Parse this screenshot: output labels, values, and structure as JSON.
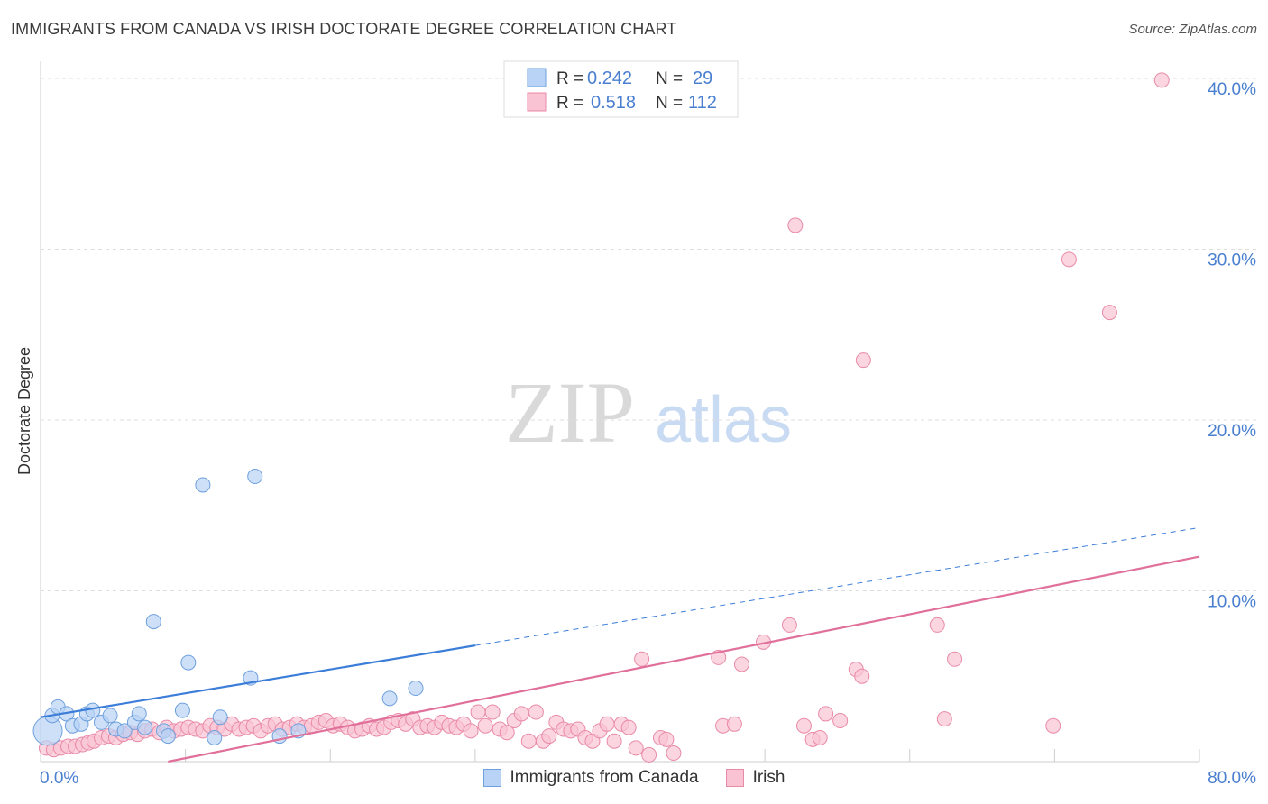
{
  "title": "IMMIGRANTS FROM CANADA VS IRISH DOCTORATE DEGREE CORRELATION CHART",
  "source": "Source: ZipAtlas.com",
  "watermark": {
    "zip": "ZIP",
    "atlas": "atlas"
  },
  "colors": {
    "blue_fill": "#b8d3f5",
    "blue_stroke": "#6fa0dd",
    "blue_line": "#3b7dd8",
    "pink_fill": "#f9c3d3",
    "pink_stroke": "#e98aa8",
    "pink_line": "#e0709a",
    "axis_text": "#4a7fd0",
    "grid": "#dddddd"
  },
  "legend_top": {
    "rows": [
      {
        "r_label": "R = ",
        "r_value": "0.242",
        "n_label": "N = ",
        "n_value": "29"
      },
      {
        "r_label": "R = ",
        "r_value": "0.518",
        "n_label": "N = ",
        "n_value": "112"
      }
    ]
  },
  "legend_bottom": {
    "series1": "Immigrants from Canada",
    "series2": "Irish"
  },
  "chart_data": {
    "type": "scatter",
    "title": "IMMIGRANTS FROM CANADA VS IRISH DOCTORATE DEGREE CORRELATION CHART",
    "xlabel": "",
    "ylabel": "Doctorate Degree",
    "xlim": [
      0,
      80
    ],
    "ylim": [
      0,
      41
    ],
    "x_tick_labels": [
      "0.0%",
      "80.0%"
    ],
    "y_ticks": [
      10,
      20,
      30,
      40
    ],
    "y_tick_labels": [
      "10.0%",
      "20.0%",
      "30.0%",
      "40.0%"
    ],
    "grid": true,
    "series": [
      {
        "name": "Immigrants from Canada",
        "r": 0.242,
        "n": 29,
        "trend": {
          "x0": 0,
          "y0": 2.6,
          "x1": 30,
          "y1": 6.8,
          "dash_x1": 80,
          "dash_y1": 13.7
        },
        "points": [
          [
            0.5,
            1.8
          ],
          [
            0.8,
            2.7
          ],
          [
            1.2,
            3.2
          ],
          [
            1.8,
            2.8
          ],
          [
            2.2,
            2.1
          ],
          [
            2.8,
            2.2
          ],
          [
            3.2,
            2.8
          ],
          [
            3.6,
            3.0
          ],
          [
            4.2,
            2.3
          ],
          [
            4.8,
            2.7
          ],
          [
            5.2,
            1.9
          ],
          [
            5.8,
            1.8
          ],
          [
            6.5,
            2.3
          ],
          [
            6.8,
            2.8
          ],
          [
            7.2,
            2.0
          ],
          [
            7.8,
            8.2
          ],
          [
            8.5,
            1.8
          ],
          [
            8.8,
            1.5
          ],
          [
            9.8,
            3.0
          ],
          [
            10.2,
            5.8
          ],
          [
            11.2,
            16.2
          ],
          [
            12.0,
            1.4
          ],
          [
            12.4,
            2.6
          ],
          [
            14.5,
            4.9
          ],
          [
            14.8,
            16.7
          ],
          [
            16.5,
            1.5
          ],
          [
            17.8,
            1.8
          ],
          [
            24.1,
            3.7
          ],
          [
            25.9,
            4.3
          ]
        ]
      },
      {
        "name": "Irish",
        "r": 0.518,
        "n": 112,
        "trend": {
          "x0": 8.8,
          "y0": 0,
          "x1": 80,
          "y1": 12.0
        },
        "points": [
          [
            0.4,
            0.8
          ],
          [
            0.9,
            0.7
          ],
          [
            1.4,
            0.8
          ],
          [
            1.9,
            0.9
          ],
          [
            2.4,
            0.9
          ],
          [
            2.9,
            1.0
          ],
          [
            3.3,
            1.1
          ],
          [
            3.7,
            1.2
          ],
          [
            4.2,
            1.4
          ],
          [
            4.7,
            1.5
          ],
          [
            5.2,
            1.4
          ],
          [
            5.7,
            1.6
          ],
          [
            6.2,
            1.7
          ],
          [
            6.7,
            1.6
          ],
          [
            7.2,
            1.8
          ],
          [
            7.7,
            1.9
          ],
          [
            8.2,
            1.7
          ],
          [
            8.7,
            2.0
          ],
          [
            9.2,
            1.8
          ],
          [
            9.7,
            1.9
          ],
          [
            10.2,
            2.0
          ],
          [
            10.7,
            1.9
          ],
          [
            11.2,
            1.8
          ],
          [
            11.7,
            2.1
          ],
          [
            12.2,
            2.0
          ],
          [
            12.7,
            1.9
          ],
          [
            13.2,
            2.2
          ],
          [
            13.7,
            1.9
          ],
          [
            14.2,
            2.0
          ],
          [
            14.7,
            2.1
          ],
          [
            15.2,
            1.8
          ],
          [
            15.7,
            2.1
          ],
          [
            16.2,
            2.2
          ],
          [
            16.7,
            1.9
          ],
          [
            17.2,
            2.0
          ],
          [
            17.7,
            2.2
          ],
          [
            18.2,
            2.0
          ],
          [
            18.7,
            2.1
          ],
          [
            19.2,
            2.3
          ],
          [
            19.7,
            2.4
          ],
          [
            20.2,
            2.1
          ],
          [
            20.7,
            2.2
          ],
          [
            21.2,
            2.0
          ],
          [
            21.7,
            1.8
          ],
          [
            22.2,
            1.9
          ],
          [
            22.7,
            2.1
          ],
          [
            23.2,
            1.9
          ],
          [
            23.7,
            2.0
          ],
          [
            24.2,
            2.3
          ],
          [
            24.7,
            2.4
          ],
          [
            25.2,
            2.2
          ],
          [
            25.7,
            2.5
          ],
          [
            26.2,
            2.0
          ],
          [
            26.7,
            2.1
          ],
          [
            27.2,
            2.0
          ],
          [
            27.7,
            2.3
          ],
          [
            28.2,
            2.1
          ],
          [
            28.7,
            2.0
          ],
          [
            29.2,
            2.2
          ],
          [
            29.7,
            1.8
          ],
          [
            30.2,
            2.9
          ],
          [
            30.7,
            2.1
          ],
          [
            31.2,
            2.9
          ],
          [
            31.7,
            1.9
          ],
          [
            32.2,
            1.7
          ],
          [
            32.7,
            2.4
          ],
          [
            33.2,
            2.8
          ],
          [
            33.7,
            1.2
          ],
          [
            34.2,
            2.9
          ],
          [
            34.7,
            1.2
          ],
          [
            35.1,
            1.5
          ],
          [
            35.6,
            2.3
          ],
          [
            36.1,
            1.9
          ],
          [
            36.6,
            1.8
          ],
          [
            37.1,
            1.9
          ],
          [
            37.6,
            1.4
          ],
          [
            38.1,
            1.2
          ],
          [
            38.6,
            1.8
          ],
          [
            39.1,
            2.2
          ],
          [
            39.6,
            1.2
          ],
          [
            40.1,
            2.2
          ],
          [
            40.6,
            2.0
          ],
          [
            41.1,
            0.8
          ],
          [
            41.5,
            6.0
          ],
          [
            42.0,
            0.4
          ],
          [
            42.8,
            1.4
          ],
          [
            43.2,
            1.3
          ],
          [
            43.7,
            0.5
          ],
          [
            46.8,
            6.1
          ],
          [
            47.1,
            2.1
          ],
          [
            47.9,
            2.2
          ],
          [
            48.4,
            5.7
          ],
          [
            49.9,
            7.0
          ],
          [
            51.7,
            8.0
          ],
          [
            52.1,
            31.4
          ],
          [
            52.7,
            2.1
          ],
          [
            53.3,
            1.3
          ],
          [
            53.8,
            1.4
          ],
          [
            54.2,
            2.8
          ],
          [
            55.2,
            2.4
          ],
          [
            56.3,
            5.4
          ],
          [
            56.7,
            5.0
          ],
          [
            56.8,
            23.5
          ],
          [
            61.9,
            8.0
          ],
          [
            62.4,
            2.5
          ],
          [
            63.1,
            6.0
          ],
          [
            69.9,
            2.1
          ],
          [
            71.0,
            29.4
          ],
          [
            73.8,
            26.3
          ],
          [
            77.4,
            39.9
          ]
        ]
      }
    ]
  }
}
